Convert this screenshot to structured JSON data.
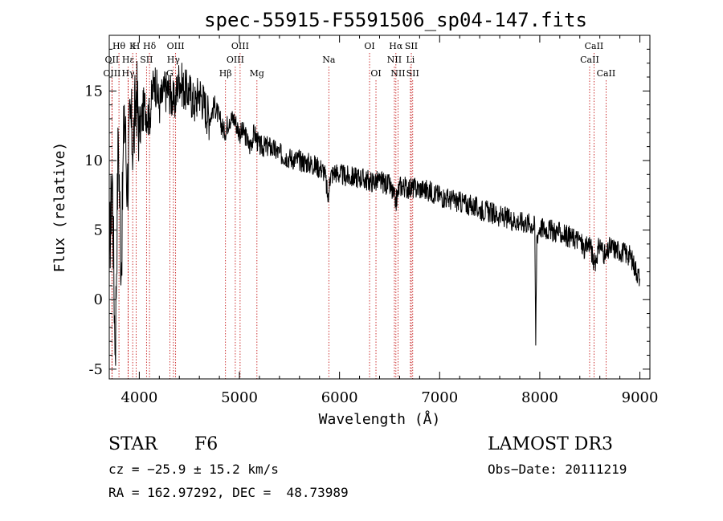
{
  "chart_data": {
    "type": "line",
    "title": "spec-55915-F5591506_sp04-147.fits",
    "xlabel": "Wavelength (Å)",
    "ylabel": "Flux (relative)",
    "xlim": [
      3700,
      9100
    ],
    "ylim": [
      -5.7,
      19.0
    ],
    "xticks": [
      4000,
      5000,
      6000,
      7000,
      8000,
      9000
    ],
    "yticks": [
      -5,
      0,
      5,
      10,
      15
    ],
    "series": [
      {
        "name": "flux",
        "x": [
          3700,
          3730,
          3760,
          3790,
          3820,
          3850,
          3880,
          3910,
          3940,
          3970,
          4000,
          4050,
          4100,
          4150,
          4200,
          4250,
          4300,
          4350,
          4400,
          4450,
          4500,
          4550,
          4600,
          4650,
          4700,
          4750,
          4800,
          4850,
          4900,
          4950,
          5000,
          5050,
          5100,
          5150,
          5200,
          5300,
          5400,
          5500,
          5600,
          5700,
          5800,
          5850,
          5890,
          5900,
          5950,
          6000,
          6100,
          6200,
          6300,
          6400,
          6500,
          6563,
          6600,
          6700,
          6800,
          6900,
          7000,
          7100,
          7200,
          7300,
          7400,
          7500,
          7600,
          7700,
          7800,
          7900,
          7950,
          7960,
          7970,
          8000,
          8100,
          8200,
          8300,
          8400,
          8450,
          8500,
          8542,
          8600,
          8662,
          8700,
          8800,
          8900,
          9000
        ],
        "y": [
          3,
          9,
          -4,
          12,
          2,
          14,
          8,
          13,
          11,
          15,
          12,
          14,
          13,
          16,
          14,
          15,
          15,
          14,
          16,
          15,
          15,
          14,
          15,
          14,
          13,
          14,
          13,
          12,
          13,
          13,
          12,
          12,
          11,
          12,
          11,
          11,
          10.5,
          10.2,
          10,
          9.8,
          9.5,
          9.2,
          7,
          8.8,
          9.2,
          9,
          8.8,
          8.8,
          8.5,
          8.5,
          8.2,
          7,
          8.2,
          8,
          8,
          7.8,
          7.5,
          7.2,
          7,
          6.8,
          6.5,
          6.3,
          6,
          5.8,
          5.6,
          5.5,
          5.3,
          -3.3,
          4.5,
          5.2,
          5,
          4.8,
          4.5,
          4.3,
          3.5,
          4.2,
          2.5,
          4,
          3,
          3.8,
          3.5,
          3.2,
          1.5
        ]
      }
    ],
    "line_marks": [
      {
        "label": "Hθ",
        "wave": 3797,
        "row": 1
      },
      {
        "label": "OII",
        "wave": 3727,
        "row": 2
      },
      {
        "label": "OIII",
        "wave": 3727,
        "row": 3
      },
      {
        "label": "K",
        "wave": 3934,
        "row": 1
      },
      {
        "label": "H",
        "wave": 3969,
        "row": 1
      },
      {
        "label": "Hε",
        "wave": 3889,
        "row": 2
      },
      {
        "label": "SII",
        "wave": 4072,
        "row": 2
      },
      {
        "label": "Hγ",
        "wave": 3889,
        "row": 3
      },
      {
        "label": "Hδ",
        "wave": 4102,
        "row": 1
      },
      {
        "label": "OIII",
        "wave": 4363,
        "row": 1
      },
      {
        "label": "Hγ",
        "wave": 4341,
        "row": 2
      },
      {
        "label": "G",
        "wave": 4305,
        "row": 3
      },
      {
        "label": "Hβ",
        "wave": 4861,
        "row": 3
      },
      {
        "label": "OIII",
        "wave": 5007,
        "row": 1
      },
      {
        "label": "OIII",
        "wave": 4959,
        "row": 2
      },
      {
        "label": "Mg",
        "wave": 5175,
        "row": 3
      },
      {
        "label": "Na",
        "wave": 5893,
        "row": 2
      },
      {
        "label": "OI",
        "wave": 6300,
        "row": 1
      },
      {
        "label": "OI",
        "wave": 6364,
        "row": 3
      },
      {
        "label": "Hα",
        "wave": 6563,
        "row": 1
      },
      {
        "label": "NII",
        "wave": 6548,
        "row": 2
      },
      {
        "label": "NII",
        "wave": 6584,
        "row": 3
      },
      {
        "label": "SII",
        "wave": 6717,
        "row": 1
      },
      {
        "label": "Li",
        "wave": 6708,
        "row": 2
      },
      {
        "label": "SII",
        "wave": 6731,
        "row": 3
      },
      {
        "label": "CaII",
        "wave": 8542,
        "row": 1
      },
      {
        "label": "CaII",
        "wave": 8498,
        "row": 2
      },
      {
        "label": "CaII",
        "wave": 8662,
        "row": 3
      }
    ],
    "colors": {
      "spectrum": "#000000",
      "line_marks": "#c00000"
    }
  },
  "info": {
    "class": "STAR",
    "subclass": "F6",
    "survey": "LAMOST DR3",
    "cz": "cz = −25.9 ± 15.2 km/s",
    "obs_date": "Obs−Date: 20111219",
    "radec": "RA = 162.97292, DEC =  48.73989"
  }
}
